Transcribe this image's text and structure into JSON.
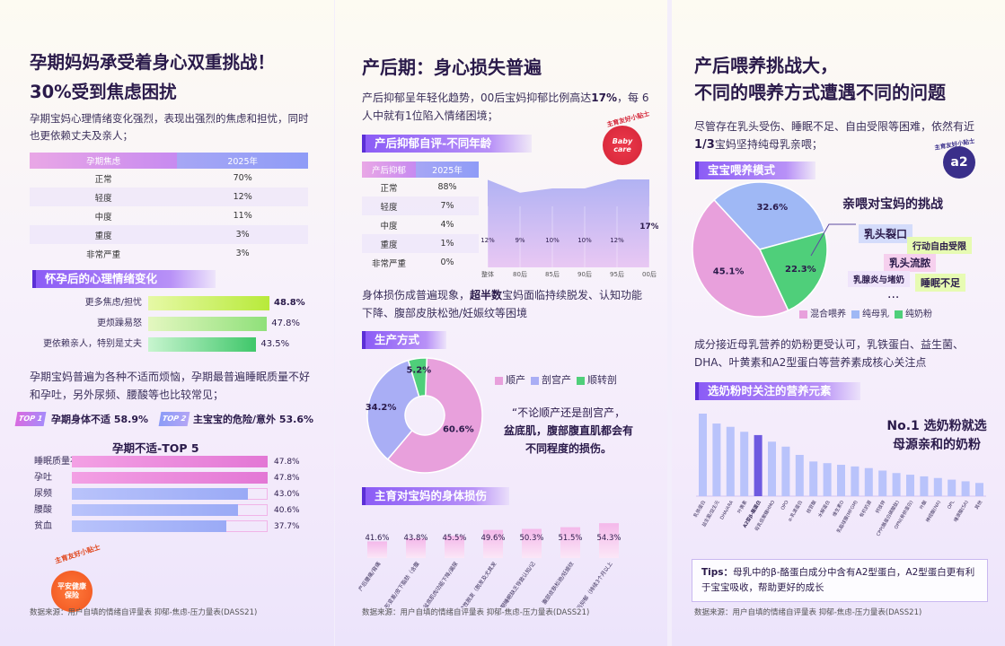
{
  "p1": {
    "title_l1": "孕期妈妈承受着身心双重挑战！",
    "title_l2": "30%受到焦虑困扰",
    "intro": "孕期宝妈心理情绪变化强烈，表现出强烈的焦虑和担忧，同时也更依赖丈夫及亲人；",
    "table_head": [
      "孕期焦虑",
      "2025年"
    ],
    "table_rows": [
      [
        "正常",
        "70%"
      ],
      [
        "轻度",
        "12%"
      ],
      [
        "中度",
        "11%"
      ],
      [
        "重度",
        "3%"
      ],
      [
        "非常严重",
        "3%"
      ]
    ],
    "sec1": "怀孕后的心理情绪变化",
    "emotions": [
      {
        "label": "更多焦虑/担忧",
        "value": 48.8,
        "text": "48.8%"
      },
      {
        "label": "更烦躁易怒",
        "value": 47.8,
        "text": "47.8%"
      },
      {
        "label": "更依赖亲人，特别是丈夫",
        "value": 43.5,
        "text": "43.5%"
      }
    ],
    "para2": "孕期宝妈普遍为各种不适而烦恼，孕期最普遍睡眠质量不好和孕吐，另外尿频、腰酸等也比较常见；",
    "top1_badge": "TOP 1",
    "top1_text": "孕期身体不适 58.9%",
    "top2_badge": "TOP 2",
    "top2_text": "主宝宝的危险/意外 53.6%",
    "sub_title": "孕期不适-TOP 5",
    "discomforts": [
      {
        "label": "睡眠质量不好",
        "value": 47.8,
        "text": "47.8%"
      },
      {
        "label": "孕吐",
        "value": 47.8,
        "text": "47.8%"
      },
      {
        "label": "尿频",
        "value": 43.0,
        "text": "43.0%"
      },
      {
        "label": "腰酸",
        "value": 40.6,
        "text": "40.6%"
      },
      {
        "label": "贫血",
        "value": 37.7,
        "text": "37.7%"
      }
    ],
    "badge_top": "主育友好小贴士",
    "badge_main": "平安健康保险",
    "source": "数据来源：用户自填的情绪自评量表 抑郁-焦虑-压力量表(DASS21)"
  },
  "p2": {
    "title": "产后期：身心损失普遍",
    "intro1": "产后抑郁呈年轻化趋势，00后宝妈抑郁比例高达",
    "intro_hl": "17%",
    "intro2": "，每 6 人中就有1位陷入情绪困境；",
    "sec1": "产后抑郁自评-不同年龄",
    "badge_top": "主育友好小贴士",
    "badge_main": "Baby care",
    "table_head": [
      "产后抑郁",
      "2025年"
    ],
    "table_rows": [
      [
        "正常",
        "88%"
      ],
      [
        "轻度",
        "7%"
      ],
      [
        "中度",
        "4%"
      ],
      [
        "重度",
        "1%"
      ],
      [
        "非常严重",
        "0%"
      ]
    ],
    "chart_data": {
      "type": "area",
      "categories": [
        "整体",
        "80后",
        "85后",
        "90后",
        "95后",
        "00后"
      ],
      "values": [
        12,
        9,
        10,
        10,
        12,
        17
      ],
      "labels": [
        "12%",
        "9%",
        "10%",
        "10%",
        "12%",
        "17%"
      ]
    },
    "para2a": "身体损伤成普遍现象，",
    "para2b": "超半数",
    "para2c": "宝妈面临持续脱发、认知功能下降、腹部皮肤松弛/妊娠纹等困境",
    "sec2": "生产方式",
    "pie": {
      "type": "pie",
      "slices": [
        {
          "name": "顺产",
          "value": 60.6,
          "label": "60.6%",
          "color": "#e8a0dc"
        },
        {
          "name": "剖宫产",
          "value": 34.2,
          "label": "34.2%",
          "color": "#a9aef5"
        },
        {
          "name": "顺转剖",
          "value": 5.2,
          "label": "5.2%",
          "color": "#4fcf7a"
        }
      ]
    },
    "quote1": "“不论顺产还是剖宫产，",
    "quote2": "盆底肌，腹部腹直肌都会有",
    "quote3": "不同程度的损伤。",
    "sec3": "主育对宝妈的身体损伤",
    "damage": {
      "type": "bar",
      "values": [
        41.6,
        43.8,
        45.5,
        49.6,
        50.3,
        51.5,
        54.3
      ],
      "labels": [
        "41.6%",
        "43.8%",
        "45.5%",
        "49.6%",
        "50.3%",
        "51.5%",
        "54.3%"
      ],
      "categories": [
        "产后腰痛/背痛",
        "体形变差/皮下脂肪（含腹部）",
        "盆底肌肉功能下降/漏尿",
        "持续性脱发（脱发及尤其发际）",
        "长期睡眠缺乏导致认知/记忆下降",
        "腹部皮肤松弛/妊娠纹",
        "产后抑郁（持续3个月以上）"
      ]
    },
    "source": "数据来源：用户自填的情绪自评量表 抑郁-焦虑-压力量表(DASS21)"
  },
  "p3": {
    "title_l1": "产后喂养挑战大，",
    "title_l2": "不同的喂养方式遭遇不同的问题",
    "intro1": "尽管存在乳头受伤、睡眠不足、自由受限等困难，依然有近",
    "intro_hl": "1/3",
    "intro2": "宝妈坚持纯母乳亲喂；",
    "badge_main": "a2",
    "badge_ring": "主育友好小贴士",
    "sec1": "宝宝喂养模式",
    "pie": {
      "type": "pie",
      "slices": [
        {
          "name": "混合喂养",
          "value": 45.1,
          "label": "45.1%",
          "color": "#e8a0dc"
        },
        {
          "name": "纯母乳",
          "value": 32.6,
          "label": "32.6%",
          "color": "#9fb8f5"
        },
        {
          "name": "纯奶粉",
          "value": 22.3,
          "label": "22.3%",
          "color": "#4fcf7a"
        }
      ]
    },
    "challenge_title": "亲喂对宝妈的挑战",
    "challenges": [
      "乳头裂口",
      "行动自由受限",
      "乳头流脓",
      "乳腺炎与堵奶",
      "睡眠不足",
      "..."
    ],
    "para2": "成分接近母乳营养的奶粉更受认可，乳铁蛋白、益生菌、DHA、叶黄素和A2型蛋白等营养素成核心关注点",
    "sec2": "选奶粉时关注的营养元素",
    "no1_l1": "No.1 选奶粉就选",
    "no1_l2": "母源亲和的奶粉",
    "bars": {
      "type": "bar",
      "values": [
        100,
        88,
        84,
        78,
        74,
        66,
        60,
        50,
        42,
        40,
        38,
        36,
        34,
        31,
        28,
        26,
        24,
        22,
        20,
        18,
        16
      ],
      "categories": [
        "乳铁蛋白",
        "益生菌/益生元",
        "DHA/ARA",
        "叶黄素",
        "A2型β-酪蛋白",
        "母乳低聚糖HMO",
        "OPO",
        "α-乳清蛋白",
        "核苷酸",
        "水解蛋白",
        "维生素D",
        "乳脂球膜(MFGM)",
        "有机奶源",
        "钙铁锌",
        "CPP(酪蛋白磷酸肽)",
        "OPN(骨桥蛋白)",
        "叶酸",
        "神经酸(NA)",
        "OPL",
        "唾液酸(SA)",
        "其他"
      ],
      "highlight_index": 4
    },
    "tips_label": "Tips：",
    "tips_text": "母乳中的β-酪蛋白成分中含有A2型蛋白，A2型蛋白更有利于宝宝吸收，帮助更好的成长",
    "source": "数据来源：用户自填的情绪自评量表 抑郁-焦虑-压力量表(DASS21)"
  }
}
